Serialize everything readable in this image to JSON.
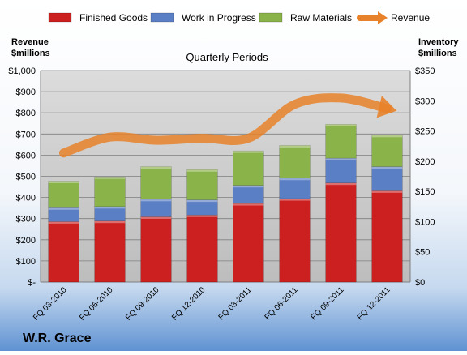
{
  "chart_data": {
    "type": "bar",
    "subtype": "stacked bar with overlaid line on secondary axis",
    "title": "Quarterly Periods",
    "company": "W.R. Grace",
    "categories": [
      "FQ 03-2010",
      "FQ 06-2010",
      "FQ 09-2010",
      "FQ 12-2010",
      "FQ 03-2011",
      "FQ 06-2011",
      "FQ 09-2011",
      "FQ 12-2011"
    ],
    "series": [
      {
        "name": "Finished Goods",
        "axis": "right",
        "color": "#cc1f1f",
        "values": [
          100,
          101,
          108,
          111,
          130,
          138,
          164,
          151
        ]
      },
      {
        "name": "Work in Progress",
        "axis": "right",
        "color": "#5b7fc4",
        "values": [
          23,
          24,
          29,
          25,
          30,
          34,
          41,
          40
        ]
      },
      {
        "name": "Raw Materials",
        "axis": "right",
        "color": "#8ab34a",
        "values": [
          44,
          49,
          54,
          50,
          57,
          54,
          56,
          52
        ]
      },
      {
        "name": "Revenue",
        "axis": "left",
        "type": "line",
        "color": "#e8822a",
        "values": [
          610,
          685,
          670,
          680,
          680,
          840,
          870,
          820
        ]
      }
    ],
    "left_axis": {
      "label_line1": "Revenue",
      "label_line2": "$millions",
      "range": [
        0,
        1000
      ],
      "ticks": [
        "$-",
        "$100",
        "$200",
        "$300",
        "$400",
        "$500",
        "$600",
        "$700",
        "$800",
        "$900",
        "$1,000"
      ]
    },
    "right_axis": {
      "label_line1": "Inventory",
      "label_line2": "$millions",
      "range": [
        0,
        350
      ],
      "ticks": [
        "$0",
        "$50",
        "$100",
        "$150",
        "$200",
        "$250",
        "$300",
        "$350"
      ]
    },
    "grid": true,
    "legend_position": "top"
  }
}
